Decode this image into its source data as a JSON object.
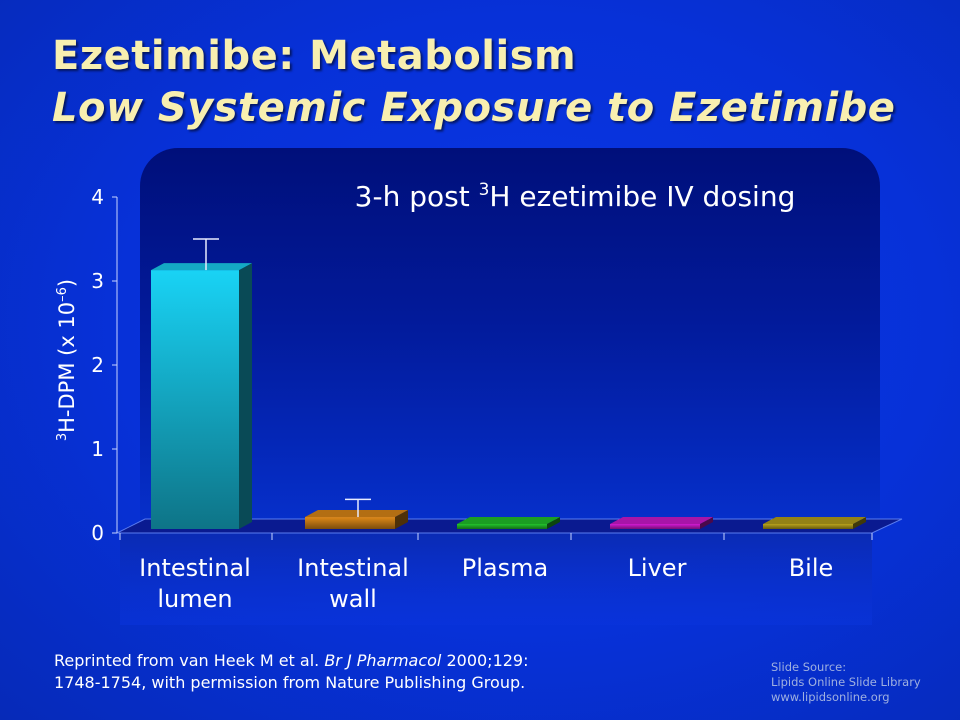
{
  "slide": {
    "title_line1": "Ezetimibe:  Metabolism",
    "title_line2": "Low Systemic Exposure to Ezetimibe"
  },
  "chart_data": {
    "type": "bar",
    "annotation": {
      "prefix": "3-h post ",
      "superscript": "3",
      "suffix": "H ezetimibe IV dosing"
    },
    "ylabel": {
      "sup1": "3",
      "main": "H-DPM (x 10",
      "sup2": "–6",
      "close": ")"
    },
    "ylim": [
      0,
      4
    ],
    "yticks": [
      "0",
      "1",
      "2",
      "3",
      "4"
    ],
    "categories": [
      "Intestinal lumen",
      "Intestinal wall",
      "Plasma",
      "Liver",
      "Bile"
    ],
    "category_lines": [
      [
        "Intestinal",
        "lumen"
      ],
      [
        "Intestinal",
        "wall"
      ],
      [
        "Plasma"
      ],
      [
        "Liver"
      ],
      [
        "Bile"
      ]
    ],
    "values": [
      3.13,
      0.19,
      0.07,
      0.07,
      0.02
    ],
    "error_upper": [
      3.5,
      0.4,
      null,
      null,
      null
    ],
    "colors": [
      "#19d3f5",
      "#e08a18",
      "#22c52c",
      "#d21ad2",
      "#b8a21c"
    ],
    "grid": false
  },
  "footer": {
    "reprint_1": "Reprinted from van Heek M et al. ",
    "journal": "Br J Pharmacol",
    "reprint_2": " 2000;129:",
    "reprint_line2": "1748-1754, with permission from Nature Publishing Group.",
    "source_lines": [
      "Slide Source:",
      "Lipids Online Slide Library",
      "www.lipidsonline.org"
    ]
  }
}
